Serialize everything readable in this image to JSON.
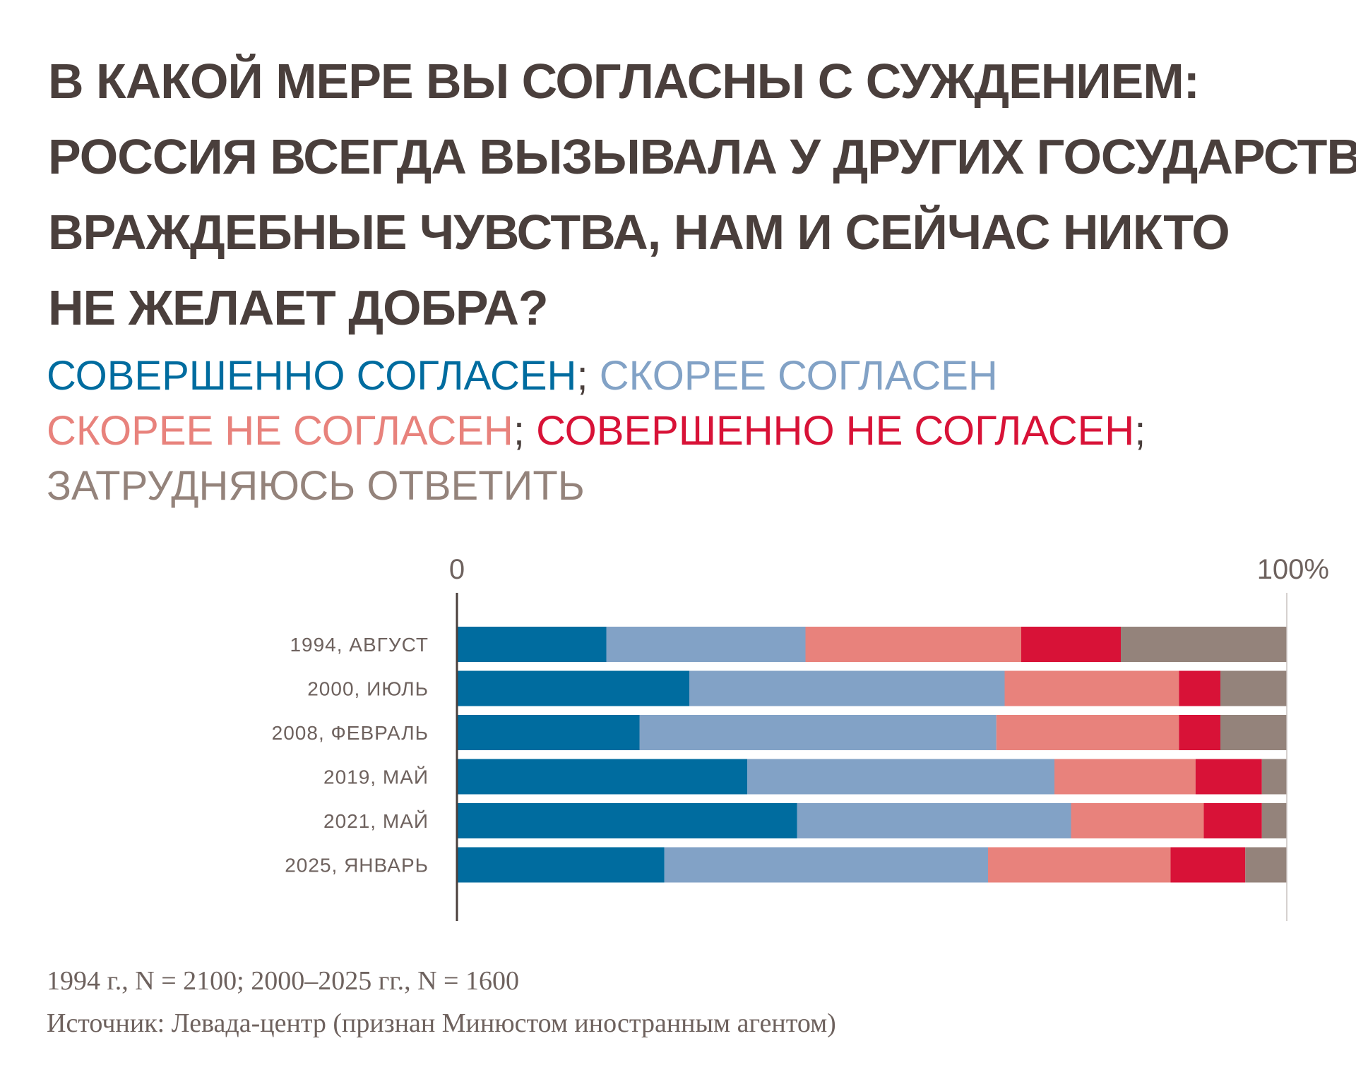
{
  "title_lines": [
    "В КАКОЙ МЕРЕ ВЫ СОГЛАСНЫ С СУЖДЕНИЕМ:",
    "РОССИЯ ВСЕГДА ВЫЗЫВАЛА У ДРУГИХ ГОСУДАРСТВ",
    "ВРАЖДЕБНЫЕ ЧУВСТВА, НАМ И СЕЙЧАС НИКТО",
    "НЕ ЖЕЛАЕТ ДОБРА?"
  ],
  "legend": {
    "items": [
      {
        "label": "СОВЕРШЕННО СОГЛАСЕН",
        "color": "#006c9f"
      },
      {
        "label": "СКОРЕЕ СОГЛАСЕН",
        "color": "#82a2c6"
      },
      {
        "label": "СКОРЕЕ НЕ СОГЛАСЕН",
        "color": "#e8827c"
      },
      {
        "label": "СОВЕРШЕННО НЕ СОГЛАСЕН",
        "color": "#d81237"
      },
      {
        "label": "ЗАТРУДНЯЮСЬ ОТВЕТИТЬ",
        "color": "#94837b"
      }
    ],
    "sep_semicolon": ";"
  },
  "chart_data": {
    "type": "bar",
    "orientation": "horizontal",
    "stacked": true,
    "xlim": [
      0,
      100
    ],
    "xtick_labels": [
      "0",
      "100%"
    ],
    "categories": [
      "1994, АВГУСТ",
      "2000, ИЮЛЬ",
      "2008, ФЕВРАЛЬ",
      "2019, МАЙ",
      "2021, МАЙ",
      "2025, ЯНВАРЬ"
    ],
    "series": [
      {
        "name": "СОВЕРШЕННО СОГЛАСЕН",
        "color": "#006c9f",
        "values": [
          18,
          28,
          22,
          35,
          41,
          25
        ]
      },
      {
        "name": "СКОРЕЕ СОГЛАСЕН",
        "color": "#82a2c6",
        "values": [
          24,
          38,
          43,
          37,
          33,
          39
        ]
      },
      {
        "name": "СКОРЕЕ НЕ СОГЛАСЕН",
        "color": "#e8827c",
        "values": [
          26,
          21,
          22,
          17,
          16,
          22
        ]
      },
      {
        "name": "СОВЕРШЕННО НЕ СОГЛАСЕН",
        "color": "#d81237",
        "values": [
          12,
          5,
          5,
          8,
          7,
          9
        ]
      },
      {
        "name": "ЗАТРУДНЯЮСЬ ОТВЕТИТЬ",
        "color": "#94837b",
        "values": [
          20,
          8,
          8,
          3,
          3,
          5
        ]
      }
    ]
  },
  "notes": {
    "sample": "1994 г., N = 2100; 2000–2025 гг., N = 1600",
    "source": "Источник: Левада-центр (признан Минюстом иностранным агентом)"
  }
}
